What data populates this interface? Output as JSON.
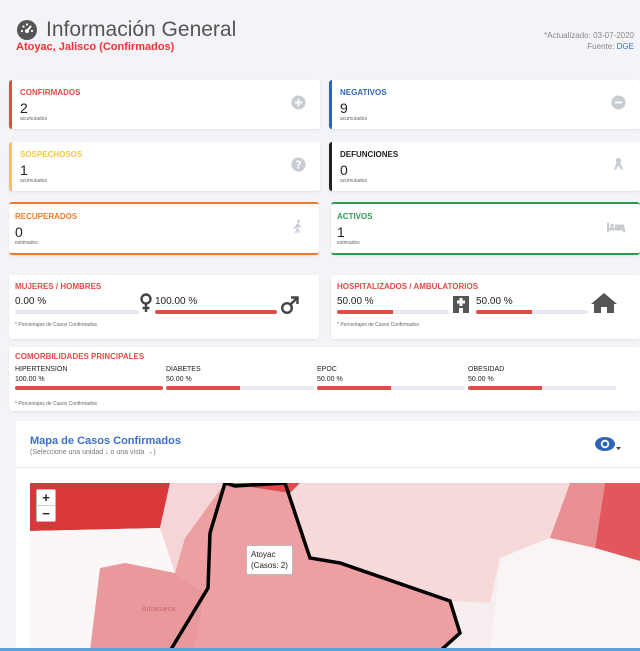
{
  "header": {
    "title": "Información General",
    "subtitle": "Atoyac, Jalisco (Confirmados)",
    "updated": "*Actualizado: 03-07-2020",
    "source_prefix": "Fuente: ",
    "source": "DGE"
  },
  "stats": {
    "confirmados": {
      "label": "CONFIRMADOS",
      "value": "2",
      "sub": "acumulados",
      "icon": "plus-circle-icon",
      "color": "#e34b47"
    },
    "negativos": {
      "label": "NEGATIVOS",
      "value": "9",
      "sub": "acumulados",
      "icon": "minus-circle-icon",
      "color": "#2f65b8"
    },
    "sospechosos": {
      "label": "SOSPECHOSOS",
      "value": "1",
      "sub": "acumulados",
      "icon": "question-circle-icon",
      "color": "#f4c64a"
    },
    "defunciones": {
      "label": "DEFUNCIONES",
      "value": "0",
      "sub": "acumulados",
      "icon": "ribbon-icon",
      "color": "#222222"
    },
    "recuperados": {
      "label": "RECUPERADOS",
      "value": "0",
      "sub": "estimados",
      "icon": "walking-icon",
      "color": "#ef7a2c"
    },
    "activos": {
      "label": "ACTIVOS",
      "value": "1",
      "sub": "estimados",
      "icon": "bed-icon",
      "color": "#2e9a54"
    }
  },
  "gender": {
    "label": "MUJERES / HOMBRES",
    "women_value": "0.00 %",
    "women_fraction": 0.0,
    "men_value": "100.00 %",
    "men_fraction": 1.0,
    "note": "* Porcentajes  de Casos Confirmados"
  },
  "hospital": {
    "label": "HOSPITALIZADOS / AMBULATORIOS",
    "hosp_value": "50.00 %",
    "hosp_fraction": 0.5,
    "amb_value": "50.00 %",
    "amb_fraction": 0.5,
    "note": "* Porcentajes  de Casos Confirmados"
  },
  "comorbidities": {
    "label": "COMORBILIDADES PRINCIPALES",
    "items": [
      {
        "name": "HIPERTENSION",
        "value": "100.00 %",
        "fraction": 1.0
      },
      {
        "name": "DIABETES",
        "value": "50.00 %",
        "fraction": 0.5
      },
      {
        "name": "EPOC",
        "value": "50.00 %",
        "fraction": 0.5
      },
      {
        "name": "OBESIDAD",
        "value": "50.00 %",
        "fraction": 0.5
      }
    ],
    "note": "* Porcentajes  de Casos Confirmados"
  },
  "map": {
    "title": "Mapa de Casos Confirmados",
    "subtitle": "(Seleccione una unidad ↓ o una vista →)",
    "zoom_in": "+",
    "zoom_out": "−",
    "tooltip_name": "Atoyac",
    "tooltip_cases": "(Casos: 2)",
    "label_amacueca": "Amacueca"
  }
}
